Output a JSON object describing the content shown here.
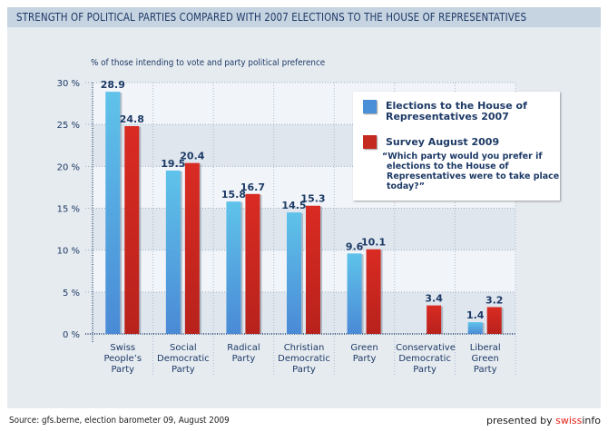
{
  "header": {
    "title": "STRENGTH OF POLITICAL PARTIES COMPARED WITH 2007 ELECTIONS TO THE HOUSE OF REPRESENTATIVES"
  },
  "footer": {
    "source": "Source: gfs.berne, election barometer 09, August 2009",
    "presented_by": "presented by ",
    "brand_red": "swiss",
    "brand_black": "info"
  },
  "legend": {
    "items": [
      {
        "label_line1": "Elections to the House of",
        "label_line2": "Representatives 2007"
      },
      {
        "label_line1": "Survey August 2009",
        "label_line2": ""
      }
    ],
    "note_lines": [
      "“Which party would you prefer if",
      "elections to the House of",
      "Representatives were to take place",
      "today?”"
    ]
  },
  "colors": {
    "series_2007": "#4a90d9",
    "series_2009": "#c42a20",
    "text": "#1d3a66",
    "brand": "#e2231a"
  },
  "chart_data": {
    "type": "bar",
    "title": "STRENGTH OF POLITICAL PARTIES COMPARED WITH 2007 ELECTIONS TO THE HOUSE OF REPRESENTATIVES",
    "subtitle": "% of those intending to vote and party political preference",
    "xlabel": "",
    "ylabel": "",
    "ylim": [
      0,
      30
    ],
    "yticks": [
      0,
      5,
      10,
      15,
      20,
      25,
      30
    ],
    "ytick_labels": [
      "0 %",
      "5 %",
      "10 %",
      "15 %",
      "20 %",
      "25 %",
      "30 %"
    ],
    "grid": true,
    "legend_position": "top-right",
    "categories": [
      [
        "Swiss",
        "People’s",
        "Party"
      ],
      [
        "Social",
        "Democratic",
        "Party"
      ],
      [
        "Radical",
        "Party"
      ],
      [
        "Christian",
        "Democratic",
        "Party"
      ],
      [
        "Green",
        "Party"
      ],
      [
        "Conservative",
        "Democratic",
        "Party"
      ],
      [
        "Liberal",
        "Green",
        "Party"
      ]
    ],
    "series": [
      {
        "name": "Elections to the House of Representatives 2007",
        "values": [
          28.9,
          19.5,
          15.8,
          14.5,
          9.6,
          null,
          1.4
        ],
        "labels": [
          "28.9",
          "19.5",
          "15.8",
          "14.5",
          "9.6",
          "",
          "1.4"
        ]
      },
      {
        "name": "Survey August 2009",
        "values": [
          24.8,
          20.4,
          16.7,
          15.3,
          10.1,
          3.4,
          3.2
        ],
        "labels": [
          "24.8",
          "20.4",
          "16.7",
          "15.3",
          "10.1",
          "3.4",
          "3.2"
        ]
      }
    ]
  }
}
